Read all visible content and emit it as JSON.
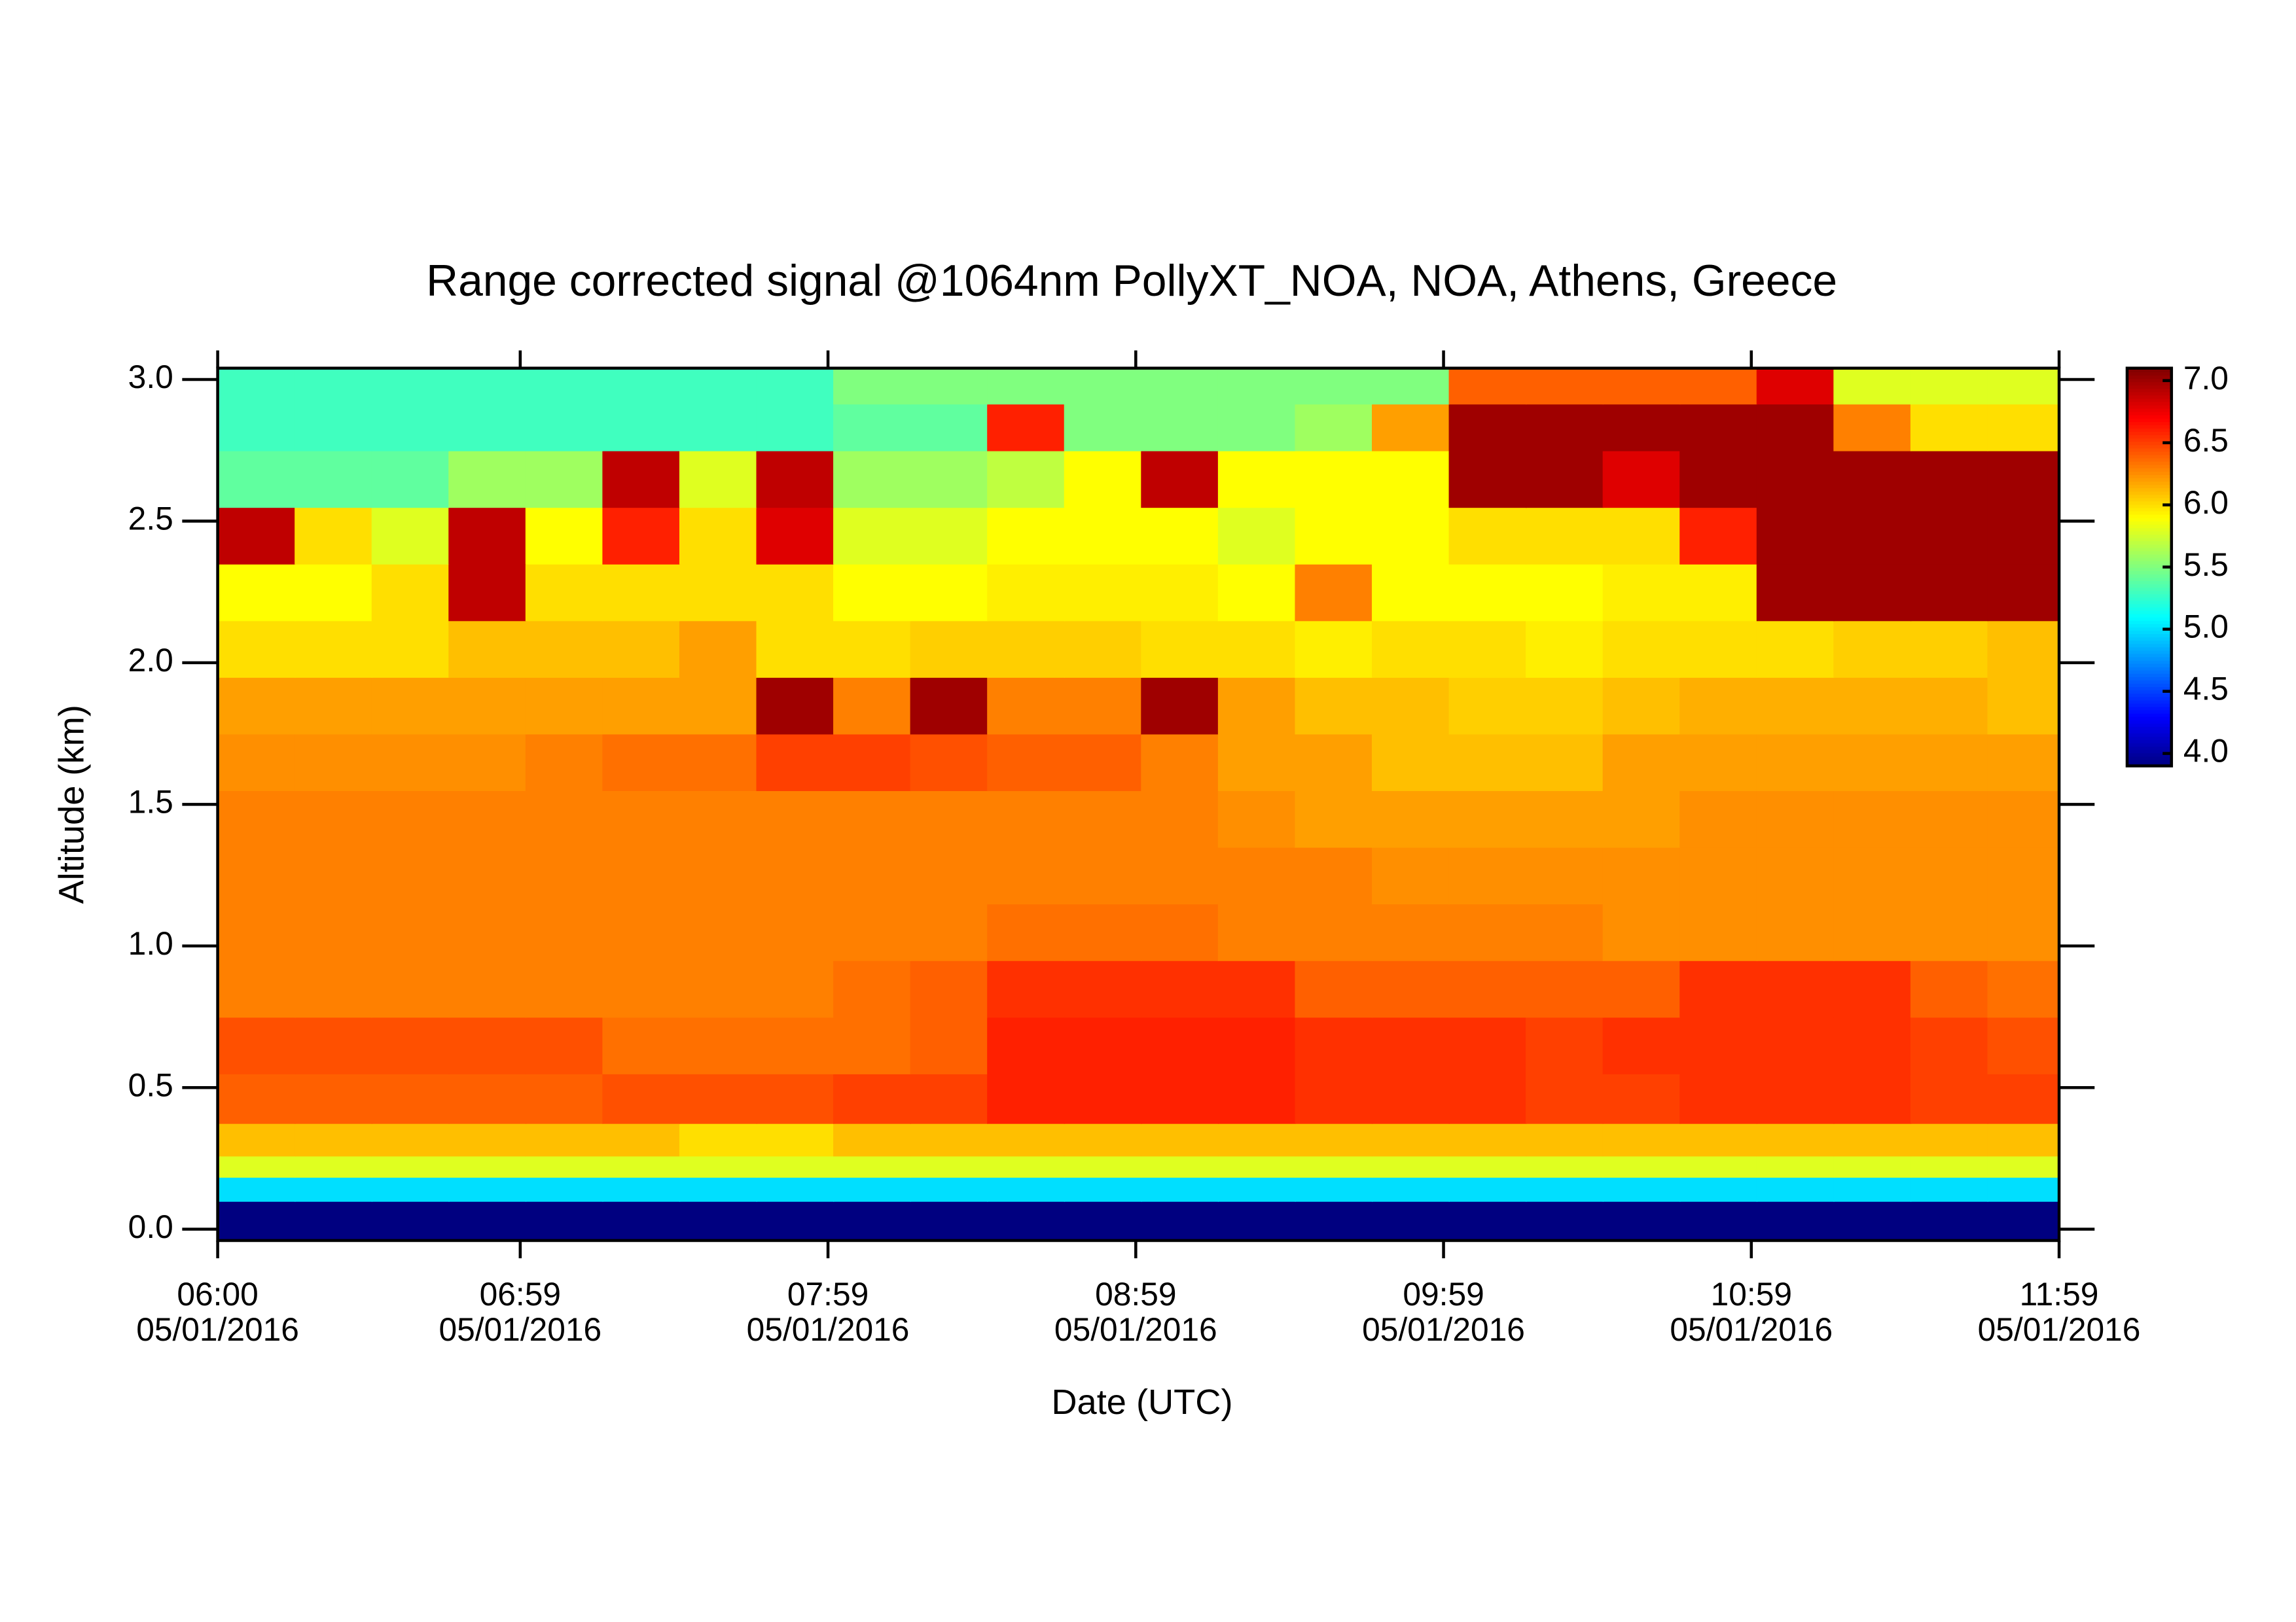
{
  "chart_data": {
    "type": "heatmap",
    "title": "Range corrected signal @1064nm  PollyXT_NOA, NOA, Athens, Greece",
    "x_label": "Date (UTC)",
    "y_label": "Altitude (km)",
    "colormap": "jet",
    "x": [
      6.125,
      6.375,
      6.625,
      6.875,
      7.125,
      7.375,
      7.625,
      7.875,
      8.125,
      8.375,
      8.625,
      8.875,
      9.125,
      9.375,
      9.625,
      9.875,
      10.125,
      10.375,
      10.625,
      10.875,
      11.125,
      11.375,
      11.625,
      11.875
    ],
    "y": [
      0.05,
      0.15,
      0.22,
      0.3,
      0.45,
      0.65,
      0.85,
      1.05,
      1.25,
      1.45,
      1.65,
      1.85,
      2.05,
      2.25,
      2.45,
      2.65,
      2.85,
      2.98
    ],
    "z": [
      [
        3.9,
        3.9,
        3.9,
        3.9,
        3.9,
        3.9,
        3.9,
        3.9,
        3.9,
        3.9,
        3.9,
        3.9,
        3.9,
        3.9,
        3.9,
        3.9,
        3.9,
        3.9,
        3.9,
        3.9,
        3.9,
        3.9,
        3.9,
        3.9
      ],
      [
        5.0,
        5.0,
        5.0,
        5.0,
        5.0,
        5.0,
        5.0,
        5.0,
        5.0,
        5.0,
        5.0,
        5.0,
        5.0,
        5.0,
        5.0,
        5.0,
        5.0,
        5.0,
        5.0,
        5.0,
        5.0,
        5.0,
        5.0,
        5.0
      ],
      [
        5.8,
        5.8,
        5.8,
        5.8,
        5.8,
        5.8,
        5.8,
        5.8,
        5.8,
        5.8,
        5.8,
        5.8,
        5.8,
        5.8,
        5.8,
        5.8,
        5.8,
        5.8,
        5.8,
        5.8,
        5.8,
        5.8,
        5.8,
        5.8
      ],
      [
        6.1,
        6.1,
        6.1,
        6.1,
        6.1,
        6.1,
        6.0,
        6.0,
        6.1,
        6.1,
        6.1,
        6.1,
        6.1,
        6.1,
        6.1,
        6.1,
        6.1,
        6.1,
        6.1,
        6.1,
        6.1,
        6.1,
        6.1,
        6.1
      ],
      [
        6.4,
        6.4,
        6.4,
        6.4,
        6.4,
        6.45,
        6.45,
        6.45,
        6.5,
        6.5,
        6.6,
        6.6,
        6.6,
        6.6,
        6.55,
        6.55,
        6.55,
        6.5,
        6.5,
        6.55,
        6.55,
        6.55,
        6.5,
        6.5
      ],
      [
        6.45,
        6.45,
        6.45,
        6.45,
        6.45,
        6.35,
        6.35,
        6.35,
        6.35,
        6.4,
        6.6,
        6.6,
        6.6,
        6.6,
        6.55,
        6.55,
        6.55,
        6.5,
        6.55,
        6.55,
        6.55,
        6.55,
        6.5,
        6.45
      ],
      [
        6.3,
        6.3,
        6.3,
        6.3,
        6.3,
        6.3,
        6.3,
        6.3,
        6.35,
        6.4,
        6.55,
        6.55,
        6.55,
        6.55,
        6.4,
        6.4,
        6.4,
        6.4,
        6.4,
        6.55,
        6.55,
        6.55,
        6.4,
        6.35
      ],
      [
        6.3,
        6.3,
        6.3,
        6.3,
        6.3,
        6.3,
        6.3,
        6.3,
        6.3,
        6.3,
        6.35,
        6.35,
        6.35,
        6.3,
        6.3,
        6.3,
        6.3,
        6.3,
        6.25,
        6.25,
        6.25,
        6.25,
        6.25,
        6.25
      ],
      [
        6.3,
        6.3,
        6.3,
        6.3,
        6.3,
        6.3,
        6.3,
        6.3,
        6.3,
        6.3,
        6.3,
        6.3,
        6.3,
        6.3,
        6.3,
        6.25,
        6.25,
        6.25,
        6.25,
        6.25,
        6.25,
        6.25,
        6.25,
        6.25
      ],
      [
        6.3,
        6.3,
        6.3,
        6.3,
        6.3,
        6.3,
        6.3,
        6.3,
        6.3,
        6.3,
        6.3,
        6.3,
        6.3,
        6.25,
        6.2,
        6.2,
        6.2,
        6.2,
        6.2,
        6.25,
        6.25,
        6.25,
        6.25,
        6.25
      ],
      [
        6.25,
        6.25,
        6.25,
        6.25,
        6.3,
        6.35,
        6.35,
        6.5,
        6.5,
        6.45,
        6.4,
        6.4,
        6.3,
        6.2,
        6.2,
        6.1,
        6.1,
        6.1,
        6.2,
        6.2,
        6.2,
        6.2,
        6.2,
        6.2
      ],
      [
        6.2,
        6.2,
        6.2,
        6.2,
        6.2,
        6.2,
        6.2,
        7.0,
        6.3,
        7.0,
        6.3,
        6.3,
        7.0,
        6.2,
        6.1,
        6.1,
        6.05,
        6.05,
        6.1,
        6.15,
        6.15,
        6.15,
        6.15,
        6.1
      ],
      [
        6.0,
        6.0,
        6.0,
        6.1,
        6.1,
        6.1,
        6.2,
        6.0,
        6.0,
        6.05,
        6.05,
        6.05,
        6.0,
        6.0,
        5.95,
        6.0,
        6.0,
        5.95,
        6.0,
        6.0,
        6.0,
        6.05,
        6.05,
        6.1
      ],
      [
        5.9,
        5.9,
        6.0,
        6.9,
        6.0,
        6.0,
        6.0,
        6.0,
        5.9,
        5.9,
        5.95,
        5.95,
        5.95,
        5.9,
        6.3,
        5.9,
        5.9,
        5.9,
        5.95,
        5.95,
        7.0,
        7.0,
        7.0,
        7.0
      ],
      [
        6.9,
        6.0,
        5.8,
        6.9,
        5.9,
        6.6,
        6.0,
        6.8,
        5.8,
        5.8,
        5.9,
        5.9,
        5.9,
        5.8,
        5.9,
        5.9,
        6.0,
        6.0,
        6.0,
        6.6,
        7.0,
        7.0,
        7.0,
        7.0
      ],
      [
        5.4,
        5.4,
        5.4,
        5.6,
        5.6,
        6.9,
        5.8,
        6.9,
        5.6,
        5.6,
        5.7,
        5.9,
        6.9,
        5.9,
        5.9,
        5.9,
        7.0,
        7.0,
        6.8,
        7.0,
        7.0,
        7.0,
        7.0,
        7.0
      ],
      [
        5.3,
        5.3,
        5.3,
        5.3,
        5.3,
        5.3,
        5.3,
        5.3,
        5.4,
        5.4,
        6.6,
        5.5,
        5.5,
        5.5,
        5.6,
        6.2,
        7.0,
        7.0,
        7.0,
        7.0,
        7.0,
        6.3,
        6.0,
        6.0
      ],
      [
        5.3,
        5.3,
        5.3,
        5.3,
        5.3,
        5.3,
        5.3,
        5.3,
        5.5,
        5.5,
        5.5,
        5.5,
        5.5,
        5.5,
        5.5,
        5.5,
        6.4,
        6.4,
        6.4,
        6.4,
        6.8,
        5.8,
        5.8,
        5.8
      ]
    ],
    "xlim": [
      6,
      11.983
    ],
    "ylim": [
      -0.04,
      3.04
    ],
    "zlim": [
      3.9,
      7.1
    ],
    "xticks": [
      {
        "value": 6,
        "label": "06:00\n05/01/2016"
      },
      {
        "value": 6.983,
        "label": "06:59\n05/01/2016"
      },
      {
        "value": 7.983,
        "label": "07:59\n05/01/2016"
      },
      {
        "value": 8.983,
        "label": "08:59\n05/01/2016"
      },
      {
        "value": 9.983,
        "label": "09:59\n05/01/2016"
      },
      {
        "value": 10.983,
        "label": "10:59\n05/01/2016"
      },
      {
        "value": 11.983,
        "label": "11:59\n05/01/2016"
      }
    ],
    "yticks": [
      {
        "value": 0,
        "label": "0.0"
      },
      0.5,
      {
        "value": 1,
        "label": "1.0"
      },
      1.5,
      {
        "value": 2,
        "label": "2.0"
      },
      2.5,
      {
        "value": 3,
        "label": "3.0"
      }
    ],
    "zticks": [
      {
        "value": 4,
        "label": "4.0"
      },
      4.5,
      {
        "value": 5,
        "label": "5.0"
      },
      5.5,
      {
        "value": 6,
        "label": "6.0"
      },
      6.5,
      {
        "value": 7,
        "label": "7.0"
      }
    ]
  }
}
